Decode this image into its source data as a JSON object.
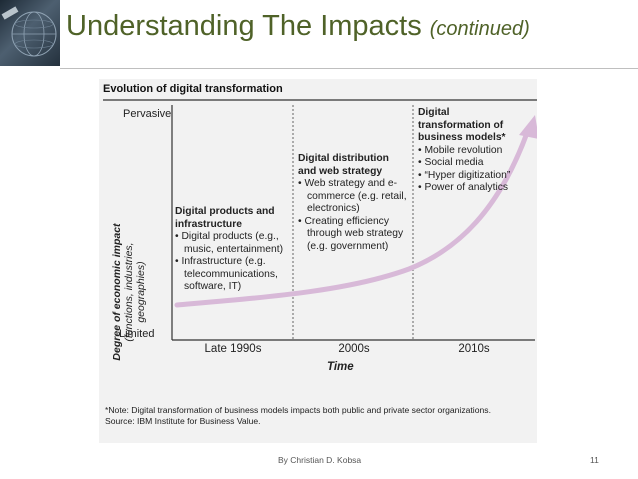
{
  "slide": {
    "title": "Understanding The Impacts",
    "title_suffix": "(continued)",
    "footer": "By Christian D. Kobsa",
    "page_number": "11"
  },
  "figure": {
    "title": "Evolution of digital transformation",
    "y_axis": {
      "label_line1": "Degree of economic impact",
      "label_line2": "(functions, industries,",
      "label_line3": "geographies)",
      "top": "Pervasive",
      "bottom": "Limited"
    },
    "x_axis": {
      "title": "Time",
      "periods": [
        "Late 1990s",
        "2000s",
        "2010s"
      ]
    },
    "blocks": [
      {
        "heading1": "Digital products and",
        "heading2": "infrastructure",
        "items": [
          "• Digital products (e.g., music, entertainment)",
          "• Infrastructure (e.g. telecommunications, software, IT)"
        ]
      },
      {
        "heading1": "Digital distribution",
        "heading2": "and web strategy",
        "items": [
          "• Web strategy and e-commerce (e.g. retail, electronics)",
          "• Creating efficiency through web strategy (e.g. government)"
        ]
      },
      {
        "heading1": "Digital",
        "heading2": "transformation of",
        "heading3": "business models*",
        "items": [
          "• Mobile revolution",
          "• Social media",
          "• “Hyper digitization”",
          "• Power of analytics"
        ]
      }
    ],
    "note": "*Note: Digital transformation of business models impacts both public and private sector organizations.",
    "source": "Source: IBM Institute for Business Value.",
    "curve_color": "#d8b9d8"
  }
}
